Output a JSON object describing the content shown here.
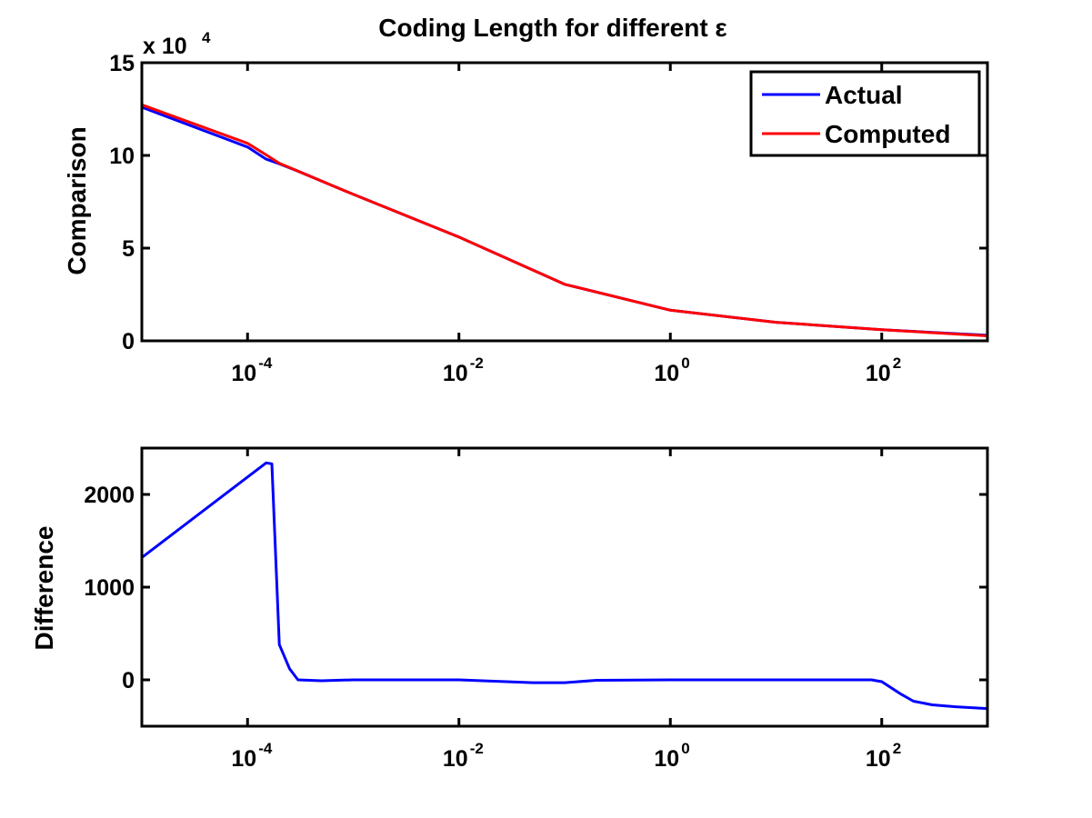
{
  "chart_data": [
    {
      "type": "line",
      "title": "Coding Length for different ε",
      "xlabel": "",
      "ylabel": "Comparison",
      "xscale": "log",
      "xlim": [
        1e-05,
        1000
      ],
      "ylim": [
        0,
        150000
      ],
      "y_multiplier_label": {
        "base": "x 10",
        "exponent": "4"
      },
      "yticks": [
        0,
        50000,
        100000,
        150000
      ],
      "ytick_labels": [
        "0",
        "5",
        "10",
        "15"
      ],
      "xticks": [
        0.0001,
        0.01,
        1,
        100
      ],
      "xtick_labels": [
        {
          "base": "10",
          "exponent": "-4"
        },
        {
          "base": "10",
          "exponent": "-2"
        },
        {
          "base": "10",
          "exponent": "0"
        },
        {
          "base": "10",
          "exponent": "2"
        }
      ],
      "legend_position": "top-right",
      "grid": false,
      "series": [
        {
          "name": "Actual",
          "color": "#0000ff",
          "x": [
            1e-05,
            0.0001,
            0.00015,
            0.0002,
            0.0003,
            0.001,
            0.01,
            0.1,
            1,
            10,
            100,
            1000
          ],
          "y": [
            126000,
            104500,
            98000,
            95500,
            91500,
            79000,
            56000,
            30500,
            16500,
            10000,
            6000,
            3000
          ]
        },
        {
          "name": "Computed",
          "color": "#ff0000",
          "x": [
            1e-05,
            0.0001,
            0.00015,
            0.0002,
            0.0003,
            0.001,
            0.01,
            0.1,
            1,
            10,
            100,
            1000
          ],
          "y": [
            127300,
            106500,
            100300,
            95800,
            91500,
            79000,
            56000,
            30500,
            16500,
            10000,
            6000,
            2700
          ]
        }
      ]
    },
    {
      "type": "line",
      "title": "",
      "xlabel": "",
      "ylabel": "Difference",
      "xscale": "log",
      "xlim": [
        1e-05,
        1000
      ],
      "ylim": [
        -500,
        2500
      ],
      "yticks": [
        0,
        1000,
        2000
      ],
      "ytick_labels": [
        "0",
        "1000",
        "2000"
      ],
      "xticks": [
        0.0001,
        0.01,
        1,
        100
      ],
      "xtick_labels": [
        {
          "base": "10",
          "exponent": "-4"
        },
        {
          "base": "10",
          "exponent": "-2"
        },
        {
          "base": "10",
          "exponent": "0"
        },
        {
          "base": "10",
          "exponent": "2"
        }
      ],
      "grid": false,
      "series": [
        {
          "color": "#0000ff",
          "x": [
            1e-05,
            0.00015,
            0.00017,
            0.0002,
            0.00025,
            0.0003,
            0.0005,
            0.001,
            0.01,
            0.05,
            0.1,
            0.2,
            1,
            10,
            80,
            100,
            150,
            200,
            300,
            500,
            1000
          ],
          "y": [
            1320,
            2340,
            2330,
            380,
            120,
            0,
            -10,
            0,
            0,
            -30,
            -30,
            -5,
            0,
            0,
            0,
            -20,
            -150,
            -230,
            -270,
            -290,
            -310
          ]
        }
      ]
    }
  ]
}
